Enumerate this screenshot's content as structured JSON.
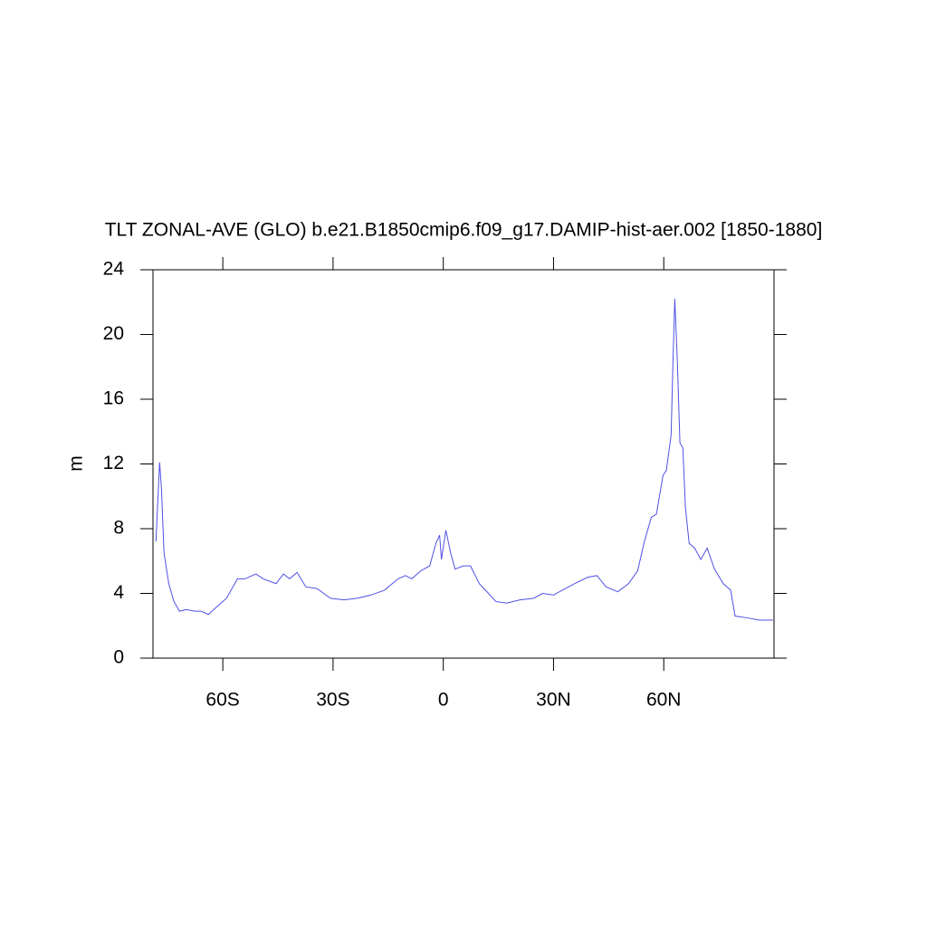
{
  "chart_data": {
    "type": "line",
    "title": "TLT ZONAL-AVE (GLO) b.e21.B1850cmip6.f09_g17.DAMIP-hist-aer.002 [1850-1880]",
    "ylabel": "m",
    "x": [
      -78.2,
      -77.2,
      -76.7,
      -76,
      -74.7,
      -73.3,
      -71.8,
      -70,
      -67.6,
      -65.9,
      -63.9,
      -61.5,
      -59,
      -56,
      -54,
      -51,
      -49,
      -45.5,
      -43.5,
      -41.8,
      -39.8,
      -37.4,
      -34.4,
      -30.7,
      -27,
      -23.4,
      -19.7,
      -16,
      -12.3,
      -10.3,
      -8.6,
      -6.1,
      -3.7,
      -2,
      -1,
      -0.5,
      0.7,
      2,
      3.2,
      5.4,
      7.4,
      9.8,
      12.3,
      14.3,
      17.2,
      20.9,
      24.6,
      27,
      30,
      33.2,
      35.7,
      39.3,
      41.8,
      44.3,
      47.5,
      50.4,
      52.9,
      54.6,
      56.6,
      58,
      59.8,
      60.7,
      62,
      62.5,
      63,
      63.7,
      64.4,
      65.2,
      65.9,
      66.9,
      68.4,
      70.1,
      71.8,
      73.8,
      76.2,
      78.2,
      79.4,
      82.4,
      86.1,
      89.7
    ],
    "series": [
      {
        "name": "TLT",
        "color": "#5050e6",
        "values": [
          7.2,
          12.1,
          10.5,
          6.5,
          4.6,
          3.5,
          2.9,
          3.0,
          2.9,
          2.9,
          2.7,
          3.2,
          3.7,
          4.9,
          4.9,
          5.2,
          4.9,
          4.6,
          5.2,
          4.9,
          5.3,
          4.4,
          4.3,
          3.7,
          3.6,
          3.7,
          3.9,
          4.2,
          4.9,
          5.1,
          4.9,
          5.4,
          5.7,
          7.1,
          7.6,
          6.1,
          7.9,
          6.5,
          5.5,
          5.7,
          5.7,
          4.6,
          4.0,
          3.5,
          3.4,
          3.6,
          3.7,
          4.0,
          3.9,
          4.3,
          4.6,
          5.0,
          5.1,
          4.4,
          4.1,
          4.6,
          5.4,
          7.1,
          8.7,
          8.9,
          11.3,
          11.6,
          13.8,
          18.3,
          22.2,
          18.3,
          13.3,
          13,
          9.3,
          7.1,
          6.8,
          6.1,
          6.8,
          5.5,
          4.6,
          4.2,
          2.6,
          2.5,
          2.35,
          2.35
        ]
      }
    ],
    "xlim": [
      -79,
      90
    ],
    "xticks": [
      {
        "value": -60,
        "label": "60S"
      },
      {
        "value": -30,
        "label": "30S"
      },
      0,
      {
        "value": 30,
        "label": "30N"
      },
      {
        "value": 60,
        "label": "60N"
      }
    ],
    "ylim": [
      0,
      24
    ],
    "yticks": [
      0,
      4,
      8,
      12,
      16,
      20,
      24
    ]
  }
}
